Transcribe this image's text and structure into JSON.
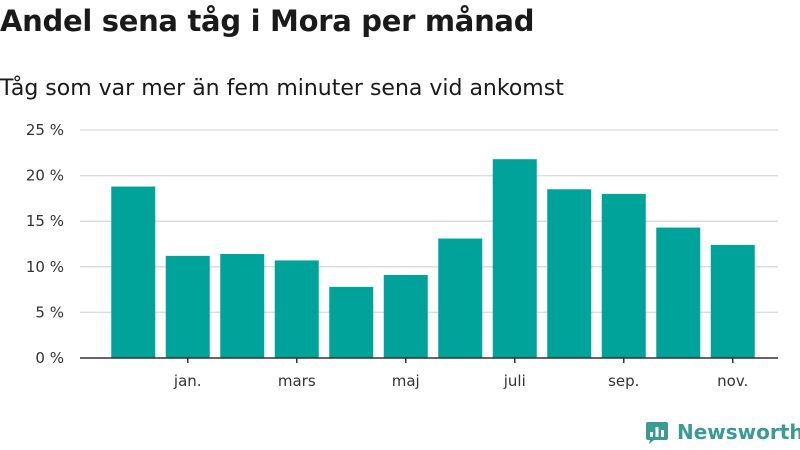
{
  "colors": {
    "bar": "#00a39a",
    "grid": "#dddddd",
    "axis": "#333333",
    "brand": "#3b9a96"
  },
  "brand": {
    "name": "Newsworthy",
    "icon": "newsworthy-logo-icon"
  },
  "chart_data": {
    "type": "bar",
    "title": "Andel sena tåg i Mora per månad",
    "subtitle": "Tåg som var mer än fem minuter sena vid ankomst",
    "xlabel": "",
    "ylabel": "",
    "ylim": [
      0,
      25
    ],
    "y_ticks": [
      0,
      5,
      10,
      15,
      20,
      25
    ],
    "y_tick_labels": [
      "0 %",
      "5 %",
      "10 %",
      "15 %",
      "20 %",
      "25 %"
    ],
    "x_tick_labels": [
      {
        "label": "jan.",
        "index": 1
      },
      {
        "label": "mars",
        "index": 3
      },
      {
        "label": "maj",
        "index": 5
      },
      {
        "label": "juli",
        "index": 7
      },
      {
        "label": "sep.",
        "index": 9
      },
      {
        "label": "nov.",
        "index": 11
      }
    ],
    "grid": true,
    "legend": false,
    "values": [
      18.8,
      11.2,
      11.4,
      10.7,
      7.8,
      9.1,
      13.1,
      21.8,
      18.5,
      18.0,
      14.3,
      12.4
    ]
  }
}
